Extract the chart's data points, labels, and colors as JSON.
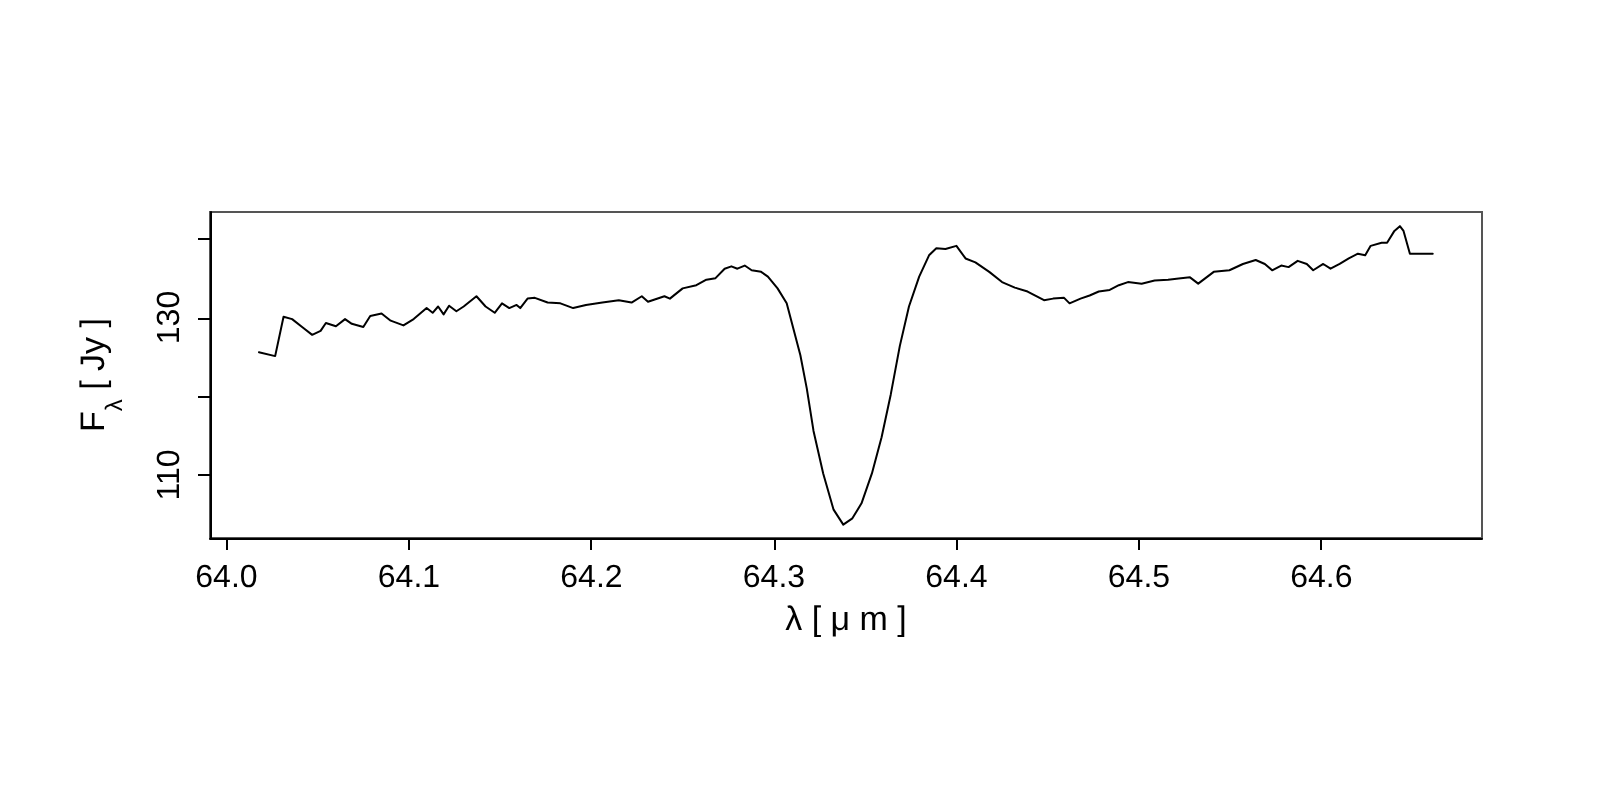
{
  "chart_data": {
    "type": "line",
    "xlabel": "λ [ μ m ]",
    "ylabel": "F$_{λ}$ [ Jy ]",
    "xlim": [
      63.991,
      64.688
    ],
    "ylim": [
      102.0,
      143.4
    ],
    "xticks": [
      {
        "value": 64.0,
        "label": "64.0"
      },
      64.1,
      64.2,
      64.3,
      64.4,
      64.5,
      64.6
    ],
    "yticks": [
      110,
      {
        "value": 120,
        "label": null
      },
      130,
      {
        "value": 140,
        "label": null
      }
    ],
    "grid": false,
    "marker": "none",
    "line_style": "solid",
    "series": [
      {
        "color": "#000000",
        "x": [
          64.0178,
          64.0267,
          64.0313,
          64.036,
          64.042,
          64.047,
          64.0516,
          64.0545,
          64.06,
          64.065,
          64.0687,
          64.075,
          64.0788,
          64.085,
          64.09,
          64.097,
          64.1026,
          64.1097,
          64.113,
          64.116,
          64.119,
          64.122,
          64.126,
          64.13,
          64.137,
          64.142,
          64.147,
          64.151,
          64.155,
          64.159,
          64.161,
          64.165,
          64.169,
          64.176,
          64.183,
          64.19,
          64.197,
          64.206,
          64.215,
          64.222,
          64.2276,
          64.231,
          64.24,
          64.243,
          64.25,
          64.2575,
          64.263,
          64.268,
          64.273,
          64.2767,
          64.28,
          64.284,
          64.2878,
          64.293,
          64.2967,
          64.302,
          64.307,
          64.3145,
          64.318,
          64.3217,
          64.327,
          64.3327,
          64.338,
          64.343,
          64.348,
          64.3537,
          64.359,
          64.364,
          64.369,
          64.374,
          64.3796,
          64.385,
          64.389,
          64.394,
          64.4,
          64.405,
          64.4104,
          64.418,
          64.425,
          64.432,
          64.439,
          64.448,
          64.453,
          64.459,
          64.462,
          64.468,
          64.473,
          64.478,
          64.484,
          64.489,
          64.494,
          64.5015,
          64.5086,
          64.516,
          64.523,
          64.528,
          64.5325,
          64.541,
          64.5496,
          64.557,
          64.564,
          64.569,
          64.573,
          64.578,
          64.582,
          64.587,
          64.592,
          64.5955,
          64.601,
          64.605,
          64.61,
          64.615,
          64.62,
          64.624,
          64.627,
          64.633,
          64.636,
          64.64,
          64.643,
          64.645,
          64.6485,
          64.661
        ],
        "values": [
          125.6,
          125.1,
          130.1,
          129.8,
          128.7,
          127.8,
          128.3,
          129.3,
          128.9,
          129.8,
          129.2,
          128.8,
          130.2,
          130.5,
          129.6,
          129.0,
          129.8,
          131.2,
          130.6,
          131.4,
          130.4,
          131.5,
          130.8,
          131.4,
          132.7,
          131.4,
          130.6,
          131.8,
          131.2,
          131.6,
          131.2,
          132.4,
          132.5,
          131.9,
          131.8,
          131.2,
          131.6,
          131.9,
          132.2,
          131.9,
          132.7,
          132.0,
          132.7,
          132.4,
          133.7,
          134.1,
          134.8,
          135.0,
          136.2,
          136.5,
          136.2,
          136.6,
          136.0,
          135.8,
          135.2,
          133.7,
          131.8,
          125.2,
          121.0,
          115.6,
          110.2,
          105.6,
          103.7,
          104.5,
          106.4,
          110.2,
          114.8,
          120.2,
          126.4,
          131.4,
          135.2,
          137.9,
          138.8,
          138.7,
          139.1,
          137.5,
          137.0,
          135.8,
          134.5,
          133.8,
          133.3,
          132.2,
          132.4,
          132.5,
          131.8,
          132.4,
          132.8,
          133.3,
          133.5,
          134.1,
          134.5,
          134.3,
          134.7,
          134.8,
          135.0,
          135.1,
          134.3,
          135.8,
          136.0,
          136.8,
          137.3,
          136.8,
          136.0,
          136.6,
          136.4,
          137.2,
          136.8,
          136.0,
          136.8,
          136.2,
          136.8,
          137.5,
          138.1,
          137.9,
          139.1,
          139.5,
          139.5,
          141.0,
          141.6,
          141.0,
          138.1,
          138.1
        ]
      }
    ]
  }
}
